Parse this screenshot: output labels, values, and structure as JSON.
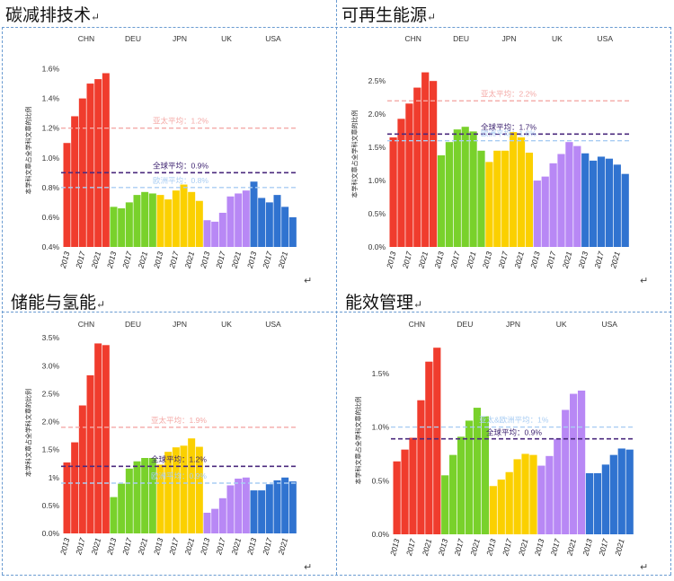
{
  "paragraph_mark": "↵",
  "end_mark": "↵",
  "colors": {
    "CHN": "#f03c2d",
    "DEU": "#79d12b",
    "JPN": "#fbd000",
    "UK": "#b888f5",
    "USA": "#3073d0"
  },
  "chart_data": [
    {
      "type": "bar",
      "title": "碳减排技术",
      "ylabel": "本学科文章占全学科文章的比例",
      "groups": [
        "CHN",
        "DEU",
        "JPN",
        "UK",
        "USA"
      ],
      "x_tick_labels": [
        "2013",
        "2017",
        "2021"
      ],
      "ylim": [
        0.4,
        1.7
      ],
      "yticks": [
        0.4,
        0.6,
        0.8,
        1.0,
        1.2,
        1.4,
        1.6
      ],
      "ytick_labels": [
        "0.4%",
        "0.6%",
        "0.8%",
        "1.0%",
        "1.2%",
        "1.4%",
        "1.6%"
      ],
      "series": [
        {
          "name": "CHN",
          "values": [
            1.1,
            1.28,
            1.4,
            1.5,
            1.53,
            1.57
          ]
        },
        {
          "name": "DEU",
          "values": [
            0.67,
            0.66,
            0.7,
            0.75,
            0.77,
            0.76
          ]
        },
        {
          "name": "JPN",
          "values": [
            0.75,
            0.72,
            0.78,
            0.82,
            0.77,
            0.71
          ]
        },
        {
          "name": "UK",
          "values": [
            0.58,
            0.57,
            0.63,
            0.74,
            0.76,
            0.78
          ]
        },
        {
          "name": "USA",
          "values": [
            0.84,
            0.73,
            0.7,
            0.75,
            0.67,
            0.6
          ]
        }
      ],
      "reference_lines": [
        {
          "label": "亚太平均：1.2%",
          "value": 1.2,
          "color": "#f4aaa7",
          "style": "dashed"
        },
        {
          "label": "全球平均：0.9%",
          "value": 0.9,
          "color": "#4b2a7e",
          "style": "dashed"
        },
        {
          "label": "欧洲平均：0.8%",
          "value": 0.8,
          "color": "#a9cdf3",
          "style": "dashed"
        }
      ]
    },
    {
      "type": "bar",
      "title": "可再生能源",
      "ylabel": "本学科文章占全学科文章的比例",
      "groups": [
        "CHN",
        "DEU",
        "JPN",
        "UK",
        "USA"
      ],
      "x_tick_labels": [
        "2013",
        "2017",
        "2021"
      ],
      "ylim": [
        0.0,
        2.8
      ],
      "yticks": [
        0.0,
        0.5,
        1.0,
        1.5,
        2.0,
        2.5
      ],
      "ytick_labels": [
        "0.0%",
        "0.5%",
        "1.0%",
        "1.5%",
        "2.0%",
        "2.5%"
      ],
      "series": [
        {
          "name": "CHN",
          "values": [
            1.65,
            1.93,
            2.16,
            2.4,
            2.63,
            2.5
          ]
        },
        {
          "name": "DEU",
          "values": [
            1.38,
            1.58,
            1.77,
            1.81,
            1.74,
            1.45
          ]
        },
        {
          "name": "JPN",
          "values": [
            1.28,
            1.45,
            1.45,
            1.73,
            1.65,
            1.42
          ]
        },
        {
          "name": "UK",
          "values": [
            1.0,
            1.06,
            1.26,
            1.4,
            1.58,
            1.52
          ]
        },
        {
          "name": "USA",
          "values": [
            1.41,
            1.3,
            1.36,
            1.33,
            1.24,
            1.1
          ]
        }
      ],
      "reference_lines": [
        {
          "label": "亚太平均：2.2%",
          "value": 2.2,
          "color": "#f4aaa7",
          "style": "dashed"
        },
        {
          "label": "全球平均：1.7%",
          "value": 1.7,
          "color": "#4b2a7e",
          "style": "dashed"
        },
        {
          "label": "欧洲平均：1.6%",
          "value": 1.6,
          "color": "#a9cdf3",
          "style": "dashed"
        }
      ]
    },
    {
      "type": "bar",
      "title": "储能与氢能",
      "ylabel": "本学科文章占全学科文章的比例",
      "groups": [
        "CHN",
        "DEU",
        "JPN",
        "UK",
        "USA"
      ],
      "x_tick_labels": [
        "2013",
        "2017",
        "2021"
      ],
      "ylim": [
        0.0,
        3.6
      ],
      "yticks": [
        0.0,
        0.5,
        1.0,
        1.5,
        2.0,
        2.5,
        3.0,
        3.5
      ],
      "ytick_labels": [
        "0.0%",
        "0.5%",
        "1%",
        "1.5%",
        "2.0%",
        "2.5%",
        "3.0%",
        "3.5%"
      ],
      "series": [
        {
          "name": "CHN",
          "values": [
            1.27,
            1.63,
            2.29,
            2.83,
            3.4,
            3.37
          ]
        },
        {
          "name": "DEU",
          "values": [
            0.65,
            0.89,
            1.16,
            1.29,
            1.35,
            1.35
          ]
        },
        {
          "name": "JPN",
          "values": [
            1.23,
            1.46,
            1.54,
            1.57,
            1.7,
            1.55
          ]
        },
        {
          "name": "UK",
          "values": [
            0.37,
            0.44,
            0.63,
            0.86,
            0.98,
            1.0
          ]
        },
        {
          "name": "USA",
          "values": [
            0.77,
            0.77,
            0.88,
            0.95,
            1.0,
            0.93
          ]
        }
      ],
      "reference_lines": [
        {
          "label": "亚太平均：1.9%",
          "value": 1.9,
          "color": "#f4aaa7",
          "style": "dashed"
        },
        {
          "label": "全球平均：1.2%",
          "value": 1.2,
          "color": "#4b2a7e",
          "style": "dashed"
        },
        {
          "label": "欧洲平均：0.9%",
          "value": 0.9,
          "color": "#a9cdf3",
          "style": "dashed"
        }
      ]
    },
    {
      "type": "bar",
      "title": "能效管理",
      "ylabel": "本学科文章占全学科文章的比例",
      "groups": [
        "CHN",
        "DEU",
        "JPN",
        "UK",
        "USA"
      ],
      "x_tick_labels": [
        "2013",
        "2017",
        "2021"
      ],
      "ylim": [
        0.0,
        1.75
      ],
      "yticks": [
        0.0,
        0.5,
        1.0,
        1.5
      ],
      "ytick_labels": [
        "0.0%",
        "0.5%",
        "1.0%",
        "1.5%"
      ],
      "series": [
        {
          "name": "CHN",
          "values": [
            0.68,
            0.79,
            0.9,
            1.25,
            1.61,
            1.74
          ]
        },
        {
          "name": "DEU",
          "values": [
            0.55,
            0.74,
            0.91,
            1.06,
            1.18,
            1.1
          ]
        },
        {
          "name": "JPN",
          "values": [
            0.45,
            0.51,
            0.58,
            0.7,
            0.75,
            0.74
          ]
        },
        {
          "name": "UK",
          "values": [
            0.64,
            0.73,
            0.89,
            1.16,
            1.31,
            1.34
          ]
        },
        {
          "name": "USA",
          "values": [
            0.57,
            0.57,
            0.65,
            0.74,
            0.8,
            0.79
          ]
        }
      ],
      "reference_lines": [
        {
          "label": "亚太&欧洲平均：1%",
          "value": 1.0,
          "color": "#a9cdf3",
          "style": "dashed"
        },
        {
          "label": "全球平均：0.9%",
          "value": 0.89,
          "color": "#4b2a7e",
          "style": "dashed"
        }
      ]
    }
  ]
}
